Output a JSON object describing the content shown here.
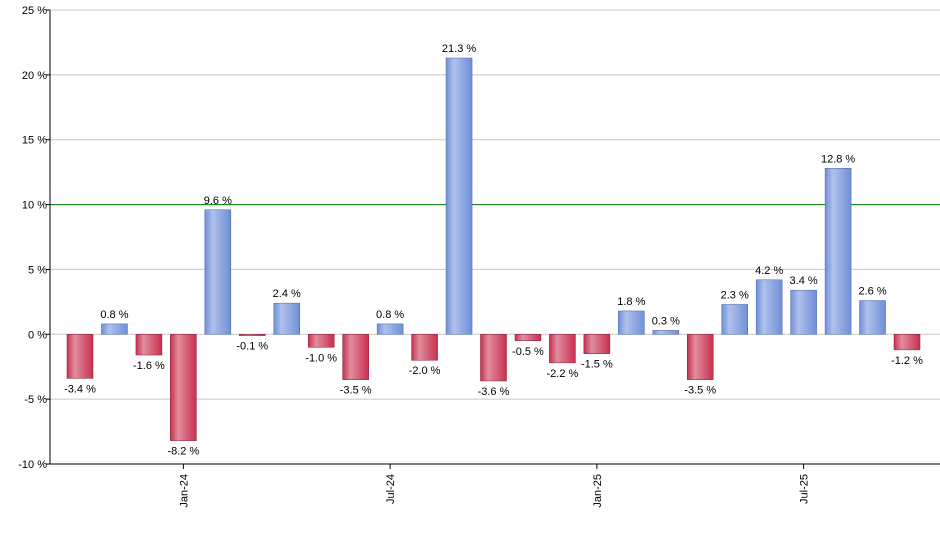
{
  "chart_data": {
    "type": "bar",
    "categories": [
      null,
      null,
      null,
      "Jan-24",
      null,
      null,
      null,
      null,
      null,
      "Jul-24",
      null,
      null,
      null,
      null,
      null,
      "Jan-25",
      null,
      null,
      null,
      null,
      null,
      "Jul-25",
      null,
      null,
      null
    ],
    "values": [
      -3.4,
      0.8,
      -1.6,
      -8.2,
      9.6,
      -0.1,
      2.4,
      -1.0,
      -3.5,
      0.8,
      -2.0,
      21.3,
      -3.6,
      -0.5,
      -2.2,
      -1.5,
      1.8,
      0.3,
      -3.5,
      2.3,
      4.2,
      3.4,
      12.8,
      2.6,
      -1.2
    ],
    "value_labels": [
      "-3.4 %",
      "0.8 %",
      "-1.6 %",
      "-8.2 %",
      "9.6 %",
      "-0.1 %",
      "2.4 %",
      "-1.0 %",
      "-3.5 %",
      "0.8 %",
      "-2.0 %",
      "21.3 %",
      "-3.6 %",
      "-0.5 %",
      "-2.2 %",
      "-1.5 %",
      "1.8 %",
      "0.3 %",
      "-3.5 %",
      "2.3 %",
      "4.2 %",
      "3.4 %",
      "12.8 %",
      "2.6 %",
      "-1.2 %"
    ],
    "positive_color": "#6f8fd8",
    "negative_color": "#c8304f",
    "ylim": [
      -10,
      25
    ],
    "yticks": [
      {
        "value": -10,
        "label": "-10 %"
      },
      {
        "value": -5,
        "label": "-5 %"
      },
      {
        "value": 0,
        "label": "0 %"
      },
      {
        "value": 5,
        "label": "5 %"
      },
      {
        "value": 10,
        "label": "10 %"
      },
      {
        "value": 15,
        "label": "15 %"
      },
      {
        "value": 20,
        "label": "20 %"
      },
      {
        "value": 25,
        "label": "25 %"
      }
    ],
    "grid": true,
    "reference_line": {
      "value": 10,
      "color": "#008000"
    }
  }
}
